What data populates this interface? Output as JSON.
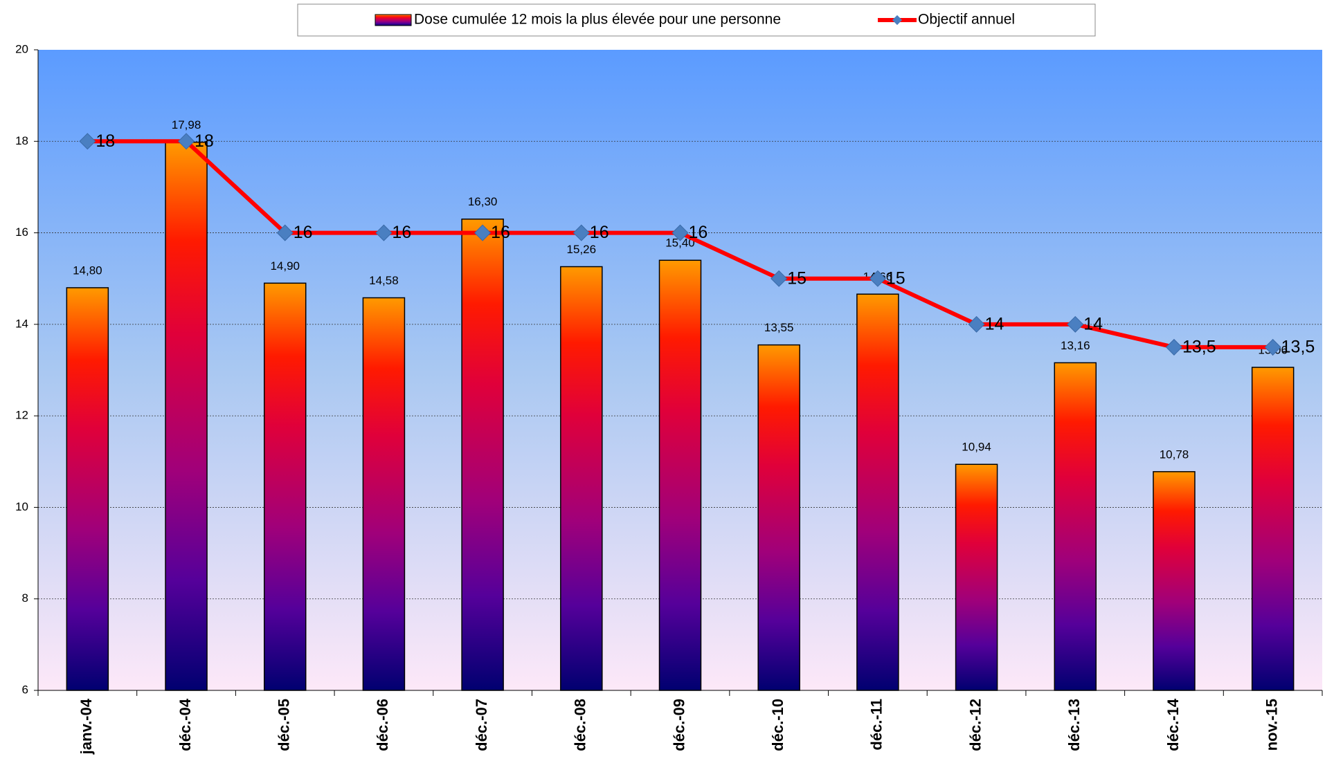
{
  "chart_data": {
    "type": "bar",
    "categories": [
      "janv.-04",
      "déc.-04",
      "déc.-05",
      "déc.-06",
      "déc.-07",
      "déc.-08",
      "déc.-09",
      "déc.-10",
      "déc.-11",
      "déc.-12",
      "déc.-13",
      "déc.-14",
      "nov.-15"
    ],
    "series": [
      {
        "name": "Dose cumulée 12 mois la plus élevée pour une personne",
        "type": "bar",
        "color": "#ff0000",
        "values": [
          14.8,
          17.98,
          14.9,
          14.58,
          16.3,
          15.26,
          15.4,
          13.55,
          14.66,
          10.94,
          13.16,
          10.78,
          13.06
        ],
        "value_labels": [
          "14,80",
          "17,98",
          "14,90",
          "14,58",
          "16,30",
          "15,26",
          "15,40",
          "13,55",
          "14,66",
          "10,94",
          "13,16",
          "10,78",
          "13,06"
        ]
      },
      {
        "name": "Objectif annuel",
        "type": "line",
        "color": "#ff0000",
        "marker_color": "#4a7fc1",
        "values": [
          18,
          18,
          16,
          16,
          16,
          16,
          16,
          15,
          15,
          14,
          14,
          13.5,
          13.5
        ],
        "value_labels": [
          "18",
          "18",
          "16",
          "16",
          "16",
          "16",
          "16",
          "15",
          "15",
          "14",
          "14",
          "13,5",
          "13,5"
        ]
      }
    ],
    "ylim": [
      6,
      20
    ],
    "yticks": [
      6,
      8,
      10,
      12,
      14,
      16,
      18,
      20
    ],
    "grid": true,
    "legend": "top"
  }
}
